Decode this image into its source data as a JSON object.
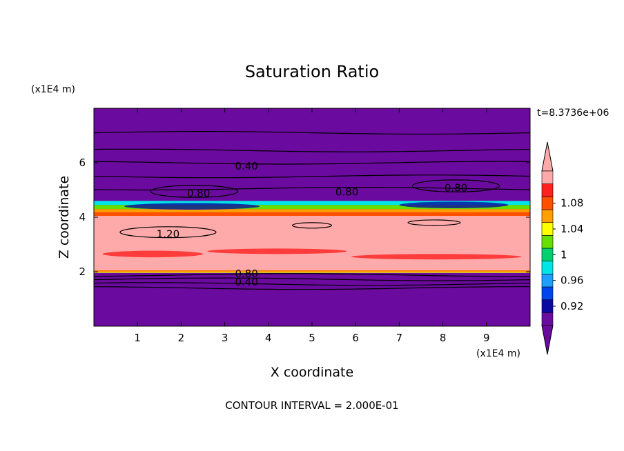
{
  "chart_data": {
    "type": "heatmap",
    "title": "Saturation Ratio",
    "xlabel": "X coordinate",
    "ylabel": "Z coordinate",
    "x_unit": "(x1E4 m)",
    "y_unit": "(x1E4 m)",
    "time_label": "t=8.3736e+06",
    "footer": "CONTOUR INTERVAL = 2.000E-01",
    "xlim": [
      0,
      10
    ],
    "ylim": [
      0,
      8
    ],
    "x_ticks": [
      1,
      2,
      3,
      4,
      5,
      6,
      7,
      8,
      9
    ],
    "x_tick_labels": [
      "1",
      "2",
      "3",
      "4",
      "5",
      "6",
      "7",
      "8",
      "9"
    ],
    "y_ticks": [
      2,
      4,
      6
    ],
    "y_tick_labels": [
      "2",
      "4",
      "6"
    ],
    "colorbar": {
      "levels": [
        0.92,
        0.94,
        0.96,
        0.98,
        1.0,
        1.02,
        1.04,
        1.06,
        1.08,
        1.1
      ],
      "tick_values": [
        0.92,
        0.96,
        1.0,
        1.04,
        1.08
      ],
      "tick_labels": [
        "0.92",
        "0.96",
        "1",
        "1.04",
        "1.08"
      ],
      "colors": [
        "#6a0a9e",
        "#0a0aa0",
        "#0044ee",
        "#1fa0ff",
        "#00e5e5",
        "#00d070",
        "#66e000",
        "#ffff00",
        "#ffa000",
        "#ff5000",
        "#ff2020",
        "#ffaaaa"
      ],
      "under_color": "#6a0a9e",
      "over_color": "#ffaaaa"
    },
    "background_color": "#6a0a9e",
    "bands": [
      {
        "z_bottom": 4.45,
        "z_top": 4.6,
        "color": "#00e5e5"
      },
      {
        "z_bottom": 4.3,
        "z_top": 4.45,
        "color": "#66e000"
      },
      {
        "z_bottom": 4.18,
        "z_top": 4.3,
        "color": "#ffa000"
      },
      {
        "z_bottom": 4.05,
        "z_top": 4.18,
        "color": "#ff5000"
      },
      {
        "z_bottom": 2.05,
        "z_top": 4.05,
        "color": "#ffaaaa"
      },
      {
        "z_bottom": 2.0,
        "z_top": 2.05,
        "color": "#ff8000"
      },
      {
        "z_bottom": 1.96,
        "z_top": 2.0,
        "color": "#ffff00"
      }
    ],
    "contour_labels": [
      {
        "x": 3.5,
        "z": 5.9,
        "text": "0.40"
      },
      {
        "x": 2.4,
        "z": 4.9,
        "text": "0.80"
      },
      {
        "x": 5.8,
        "z": 4.95,
        "text": "0.80"
      },
      {
        "x": 8.3,
        "z": 5.1,
        "text": "0.80"
      },
      {
        "x": 1.7,
        "z": 3.4,
        "text": "1.20"
      },
      {
        "x": 3.5,
        "z": 1.95,
        "text": "0.80"
      },
      {
        "x": 3.5,
        "z": 1.65,
        "text": "0.40"
      }
    ],
    "contour_lines_z": [
      7.1,
      6.45,
      6.0,
      5.5,
      5.05,
      1.88,
      1.72,
      1.55,
      1.4
    ]
  }
}
